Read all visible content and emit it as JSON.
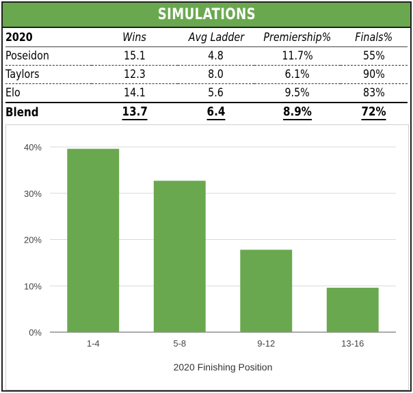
{
  "banner": {
    "title": "SIMULATIONS"
  },
  "table": {
    "year_header": "2020",
    "columns": [
      "Wins",
      "Avg Ladder",
      "Premiership%",
      "Finals%"
    ],
    "rows": [
      {
        "name": "Poseidon",
        "values": [
          "15.1",
          "4.8",
          "11.7%",
          "55%"
        ]
      },
      {
        "name": "Taylors",
        "values": [
          "12.3",
          "8.0",
          "6.1%",
          "90%"
        ]
      },
      {
        "name": "Elo",
        "values": [
          "14.1",
          "5.6",
          "9.5%",
          "83%"
        ]
      }
    ],
    "blend": {
      "name": "Blend",
      "values": [
        "13.7",
        "6.4",
        "8.9%",
        "72%"
      ]
    }
  },
  "colors": {
    "accent": "#6aa84f",
    "bar": "#6aa84f",
    "grid": "#d9d9d9"
  },
  "chart_data": {
    "type": "bar",
    "title": "",
    "categories": [
      "1-4",
      "5-8",
      "9-12",
      "13-16"
    ],
    "values": [
      39.6,
      32.7,
      17.8,
      9.6
    ],
    "xlabel": "2020 Finishing Position",
    "ylabel": "",
    "ylim": [
      0,
      40
    ],
    "yticks": [
      0,
      10,
      20,
      30,
      40
    ],
    "ytick_labels": [
      "0%",
      "10%",
      "20%",
      "30%",
      "40%"
    ],
    "grid": true
  }
}
